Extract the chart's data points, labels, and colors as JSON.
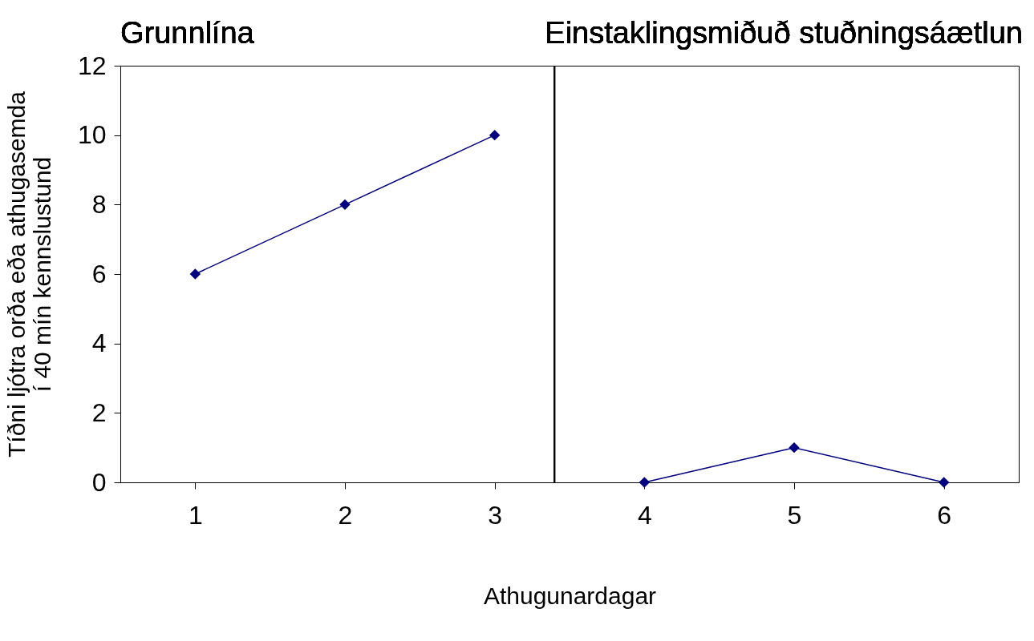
{
  "chart_data": {
    "type": "line",
    "annotations": [
      "Grunnlína",
      "Einstaklingsmiðuð stuðningsáætlun"
    ],
    "xlabel": "Athugunardagar",
    "ylabel": "Tíðni ljótra orða eða athugasemda\ní 40 mín kennslustund",
    "x": [
      1,
      2,
      3,
      4,
      5,
      6
    ],
    "xlim": [
      0.5,
      6.5
    ],
    "xticks": [
      1,
      2,
      3,
      4,
      5,
      6
    ],
    "ylim": [
      0,
      12
    ],
    "yticks": [
      0,
      2,
      4,
      6,
      8,
      10,
      12
    ],
    "series": [
      {
        "color": "#000080",
        "values": [
          6,
          8,
          10,
          null,
          null,
          null
        ]
      },
      {
        "color": "#000080",
        "values": [
          null,
          null,
          null,
          0,
          1,
          0
        ]
      }
    ],
    "ref_lines": [
      {
        "axis": "x",
        "value": 3.4,
        "color": "#000000"
      }
    ],
    "marker": "diamond",
    "line_style": "solid",
    "grid": false,
    "legend": false
  }
}
